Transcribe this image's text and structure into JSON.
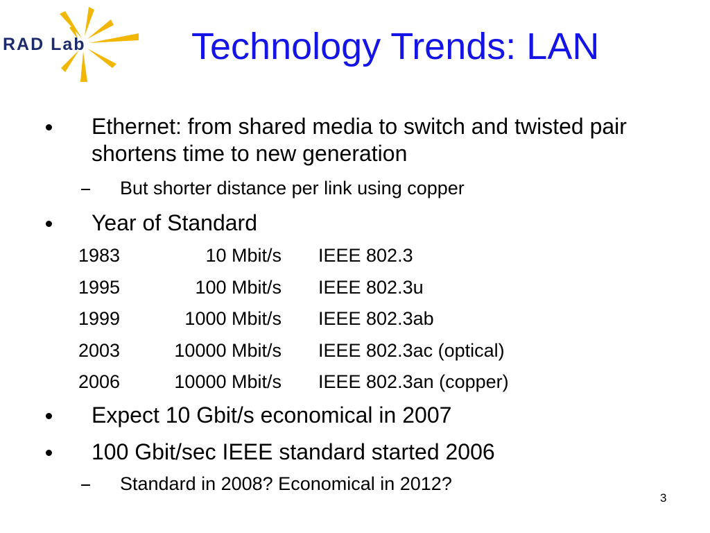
{
  "logo": {
    "text": "RAD Lab"
  },
  "title": "Technology Trends: LAN",
  "bullets": [
    {
      "text": "Ethernet: from shared media to switch and twisted pair shortens time to new generation",
      "subitems": [
        "But shorter distance per link using copper"
      ]
    },
    {
      "text": "Year of Standard"
    },
    {
      "text": "Expect 10 Gbit/s economical in 2007"
    },
    {
      "text": "100 Gbit/sec IEEE standard started 2006",
      "subitems": [
        "Standard in 2008? Economical in 2012?"
      ]
    }
  ],
  "table": {
    "rows": [
      [
        "1983",
        "10 Mbit/s",
        "IEEE 802.3"
      ],
      [
        "1995",
        "100 Mbit/s",
        "IEEE 802.3u"
      ],
      [
        "1999",
        "1000 Mbit/s",
        "IEEE 802.3ab"
      ],
      [
        "2003",
        "10000 Mbit/s",
        "IEEE 802.3ac (optical)"
      ],
      [
        "2006",
        "10000 Mbit/s",
        "IEEE 802.3an (copper)"
      ]
    ]
  },
  "page_number": "3"
}
